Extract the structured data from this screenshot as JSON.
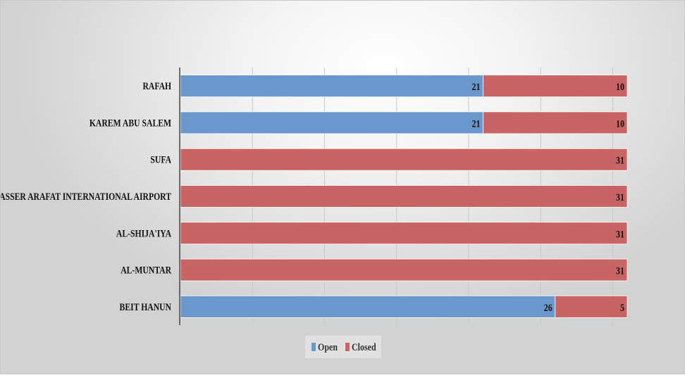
{
  "chart_data": {
    "type": "bar",
    "orientation": "horizontal",
    "stacked": true,
    "categories": [
      "RAFAH",
      "KAREM ABU SALEM",
      "SUFA",
      "YASSER ARAFAT INTERNATIONAL AIRPORT",
      "AL-SHIJA'IYA",
      "AL-MUNTAR",
      "BEIT HANUN"
    ],
    "series": [
      {
        "name": "Open",
        "color": "#6a97cc",
        "values": [
          21,
          21,
          0,
          0,
          0,
          0,
          26
        ]
      },
      {
        "name": "Closed",
        "color": "#c96464",
        "values": [
          10,
          10,
          31,
          31,
          31,
          31,
          5
        ]
      }
    ],
    "xlim": [
      0,
      31
    ],
    "grid": true,
    "legend": "bottom"
  }
}
